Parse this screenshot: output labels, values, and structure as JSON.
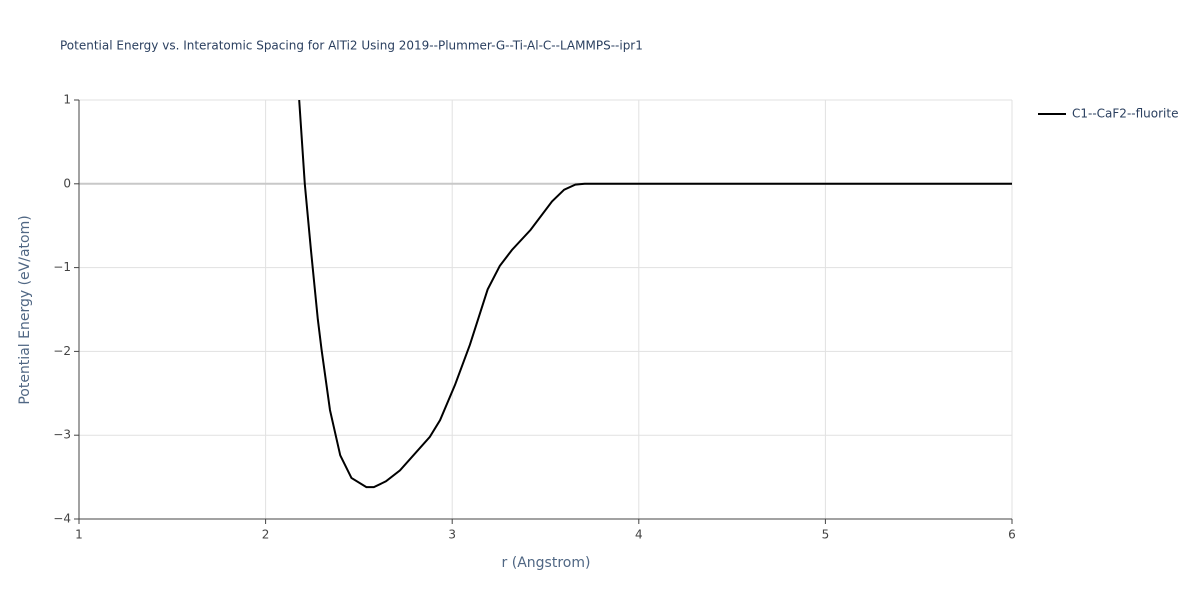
{
  "chart_data": {
    "type": "line",
    "title": "Potential Energy vs. Interatomic Spacing for AlTi2 Using 2019--Plummer-G--Ti-Al-C--LAMMPS--ipr1",
    "x_label": "r (Angstrom)",
    "y_label": "Potential Energy (eV/atom)",
    "xlim": [
      1,
      6
    ],
    "xticks": [
      1,
      2,
      3,
      4,
      5,
      6
    ],
    "ylim": [
      -4,
      1
    ],
    "yticks": [
      {
        "value": -4,
        "label": "−4"
      },
      {
        "value": -3,
        "label": "−3"
      },
      {
        "value": -2,
        "label": "−2"
      },
      {
        "value": -1,
        "label": "−1"
      },
      0,
      1
    ],
    "grid": true,
    "legend": "right",
    "series": [
      {
        "name": "C1--CaF2--fluorite",
        "color": "#000000",
        "x": [
          2.18,
          2.21,
          2.243,
          2.28,
          2.3,
          2.345,
          2.4,
          2.46,
          2.54,
          2.58,
          2.645,
          2.72,
          2.88,
          2.935,
          3.015,
          3.095,
          3.19,
          3.255,
          3.32,
          3.42,
          3.535,
          3.6,
          3.66,
          3.71,
          6
        ],
        "values": [
          1,
          0,
          -0.79,
          -1.62,
          -1.98,
          -2.7,
          -3.24,
          -3.51,
          -3.62,
          -3.62,
          -3.55,
          -3.42,
          -3.02,
          -2.82,
          -2.4,
          -1.92,
          -1.26,
          -0.98,
          -0.79,
          -0.55,
          -0.21,
          -0.07,
          -0.01,
          0,
          0
        ]
      }
    ]
  }
}
